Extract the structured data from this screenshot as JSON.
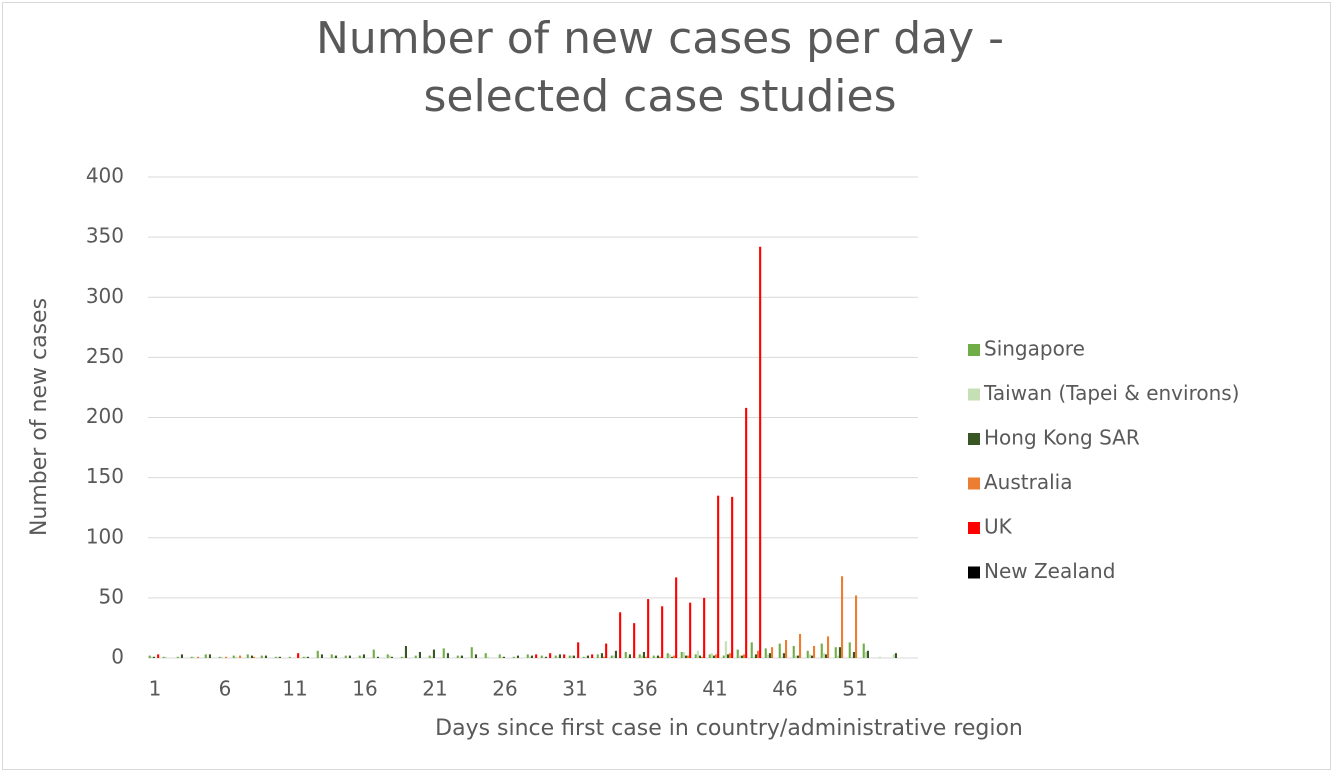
{
  "chart_data": {
    "type": "bar",
    "title": "Number of new cases per day - selected case studies",
    "x_label": "Days since first case in country/administrative region",
    "y_label": "Number of new cases",
    "categories": [
      1,
      null,
      null,
      null,
      null,
      6,
      null,
      null,
      null,
      null,
      11,
      null,
      null,
      null,
      null,
      16,
      null,
      null,
      null,
      null,
      21,
      null,
      null,
      null,
      null,
      26,
      null,
      null,
      null,
      null,
      31,
      null,
      null,
      null,
      null,
      36,
      null,
      null,
      null,
      null,
      41,
      null,
      null,
      null,
      null,
      46,
      null,
      null,
      null,
      null,
      51,
      null,
      null,
      null,
      null
    ],
    "series": [
      {
        "name": "Singapore",
        "color": "#70ad47",
        "values": [
          2,
          1,
          1,
          1,
          3,
          1,
          2,
          3,
          2,
          1,
          1,
          1,
          6,
          3,
          2,
          2,
          7,
          3,
          1,
          2,
          2,
          8,
          2,
          9,
          4,
          3,
          1,
          3,
          2,
          2,
          2,
          1,
          3,
          2,
          5,
          3,
          2,
          4,
          5,
          3,
          3,
          2,
          7,
          13,
          8,
          12,
          10,
          6,
          12,
          9,
          13,
          12,
          0,
          0,
          0
        ]
      },
      {
        "name": "Taiwan (Tapei & environs)",
        "color": "#c5e0b4",
        "values": [
          1,
          1,
          0,
          1,
          0,
          1,
          1,
          0,
          0,
          1,
          0,
          1,
          0,
          1,
          0,
          1,
          0,
          2,
          1,
          0,
          1,
          0,
          1,
          0,
          1,
          1,
          0,
          1,
          0,
          1,
          2,
          1,
          0,
          2,
          1,
          2,
          1,
          3,
          5,
          6,
          4,
          14,
          2,
          1,
          3,
          1,
          2,
          3,
          4,
          2,
          1,
          5,
          1,
          3,
          0
        ]
      },
      {
        "name": "Hong Kong SAR",
        "color": "#375623",
        "values": [
          1,
          0,
          3,
          0,
          3,
          0,
          0,
          2,
          2,
          1,
          0,
          1,
          3,
          2,
          2,
          3,
          1,
          1,
          10,
          5,
          7,
          4,
          2,
          3,
          0,
          1,
          2,
          2,
          1,
          3,
          2,
          2,
          4,
          6,
          3,
          5,
          2,
          1,
          2,
          2,
          2,
          3,
          2,
          3,
          4,
          4,
          2,
          2,
          3,
          9,
          5,
          6,
          0,
          4,
          0
        ]
      },
      {
        "name": "Australia",
        "color": "#ed7d31",
        "values": [
          0,
          0,
          0,
          1,
          0,
          1,
          2,
          1,
          0,
          0,
          0,
          0,
          0,
          0,
          0,
          0,
          0,
          0,
          0,
          0,
          0,
          0,
          0,
          0,
          0,
          0,
          0,
          0,
          0,
          0,
          0,
          0,
          1,
          0,
          0,
          1,
          1,
          2,
          2,
          1,
          3,
          4,
          3,
          6,
          9,
          15,
          20,
          10,
          18,
          68,
          52,
          0,
          0,
          0,
          0
        ]
      },
      {
        "name": "UK",
        "color": "#ff0000",
        "values": [
          3,
          0,
          0,
          0,
          0,
          0,
          0,
          0,
          0,
          0,
          4,
          0,
          0,
          0,
          0,
          0,
          0,
          0,
          0,
          0,
          0,
          0,
          0,
          0,
          0,
          0,
          0,
          3,
          4,
          3,
          13,
          3,
          12,
          38,
          29,
          49,
          43,
          67,
          46,
          50,
          135,
          134,
          208,
          342,
          0,
          0,
          0,
          0,
          0,
          0,
          0,
          0,
          0,
          0,
          0
        ]
      },
      {
        "name": "New Zealand",
        "color": "#000000",
        "values": [
          0,
          0,
          0,
          0,
          0,
          0,
          0,
          0,
          0,
          0,
          0,
          0,
          0,
          0,
          0,
          0,
          0,
          0,
          0,
          0,
          0,
          0,
          0,
          0,
          0,
          0,
          0,
          0,
          0,
          0,
          0,
          0,
          0,
          0,
          0,
          0,
          0,
          0,
          0,
          0,
          0,
          0,
          0,
          0,
          0,
          0,
          0,
          0,
          0,
          0,
          0,
          0,
          0,
          0,
          0
        ]
      }
    ],
    "ylim": [
      0,
      400
    ],
    "yticks": [
      0,
      50,
      100,
      150,
      200,
      250,
      300,
      350,
      400
    ],
    "grid": true,
    "legend": "right"
  }
}
